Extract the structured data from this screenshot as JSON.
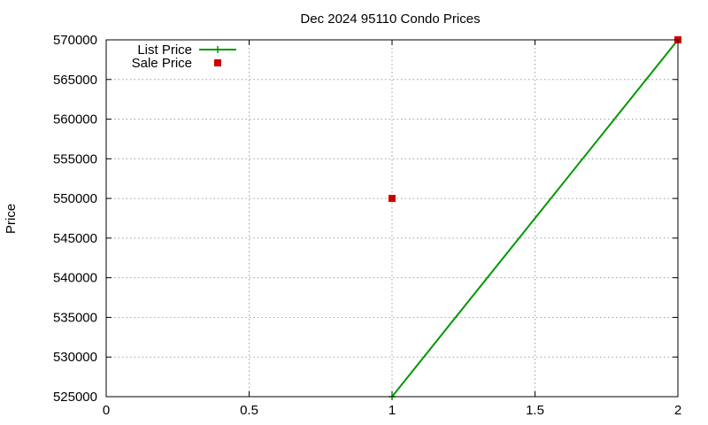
{
  "chart_data": {
    "type": "line",
    "title": "Dec 2024 95110 Condo Prices",
    "xlabel": "",
    "ylabel": "Price",
    "xlim": [
      0,
      2
    ],
    "ylim": [
      525000,
      570000
    ],
    "x_ticks": [
      "0",
      "0.5",
      "1",
      "1.5",
      "2"
    ],
    "y_ticks": [
      "525000",
      "530000",
      "535000",
      "540000",
      "545000",
      "550000",
      "555000",
      "560000",
      "565000",
      "570000"
    ],
    "grid": true,
    "legend_position": "top-left",
    "series": [
      {
        "name": "List Price",
        "style": "line+cross",
        "color": "#009900",
        "points": [
          [
            1,
            525000
          ],
          [
            2,
            570000
          ]
        ]
      },
      {
        "name": "Sale Price",
        "style": "square-markers",
        "color": "#cc0000",
        "points": [
          [
            1,
            550000
          ],
          [
            2,
            570000
          ]
        ]
      }
    ]
  }
}
